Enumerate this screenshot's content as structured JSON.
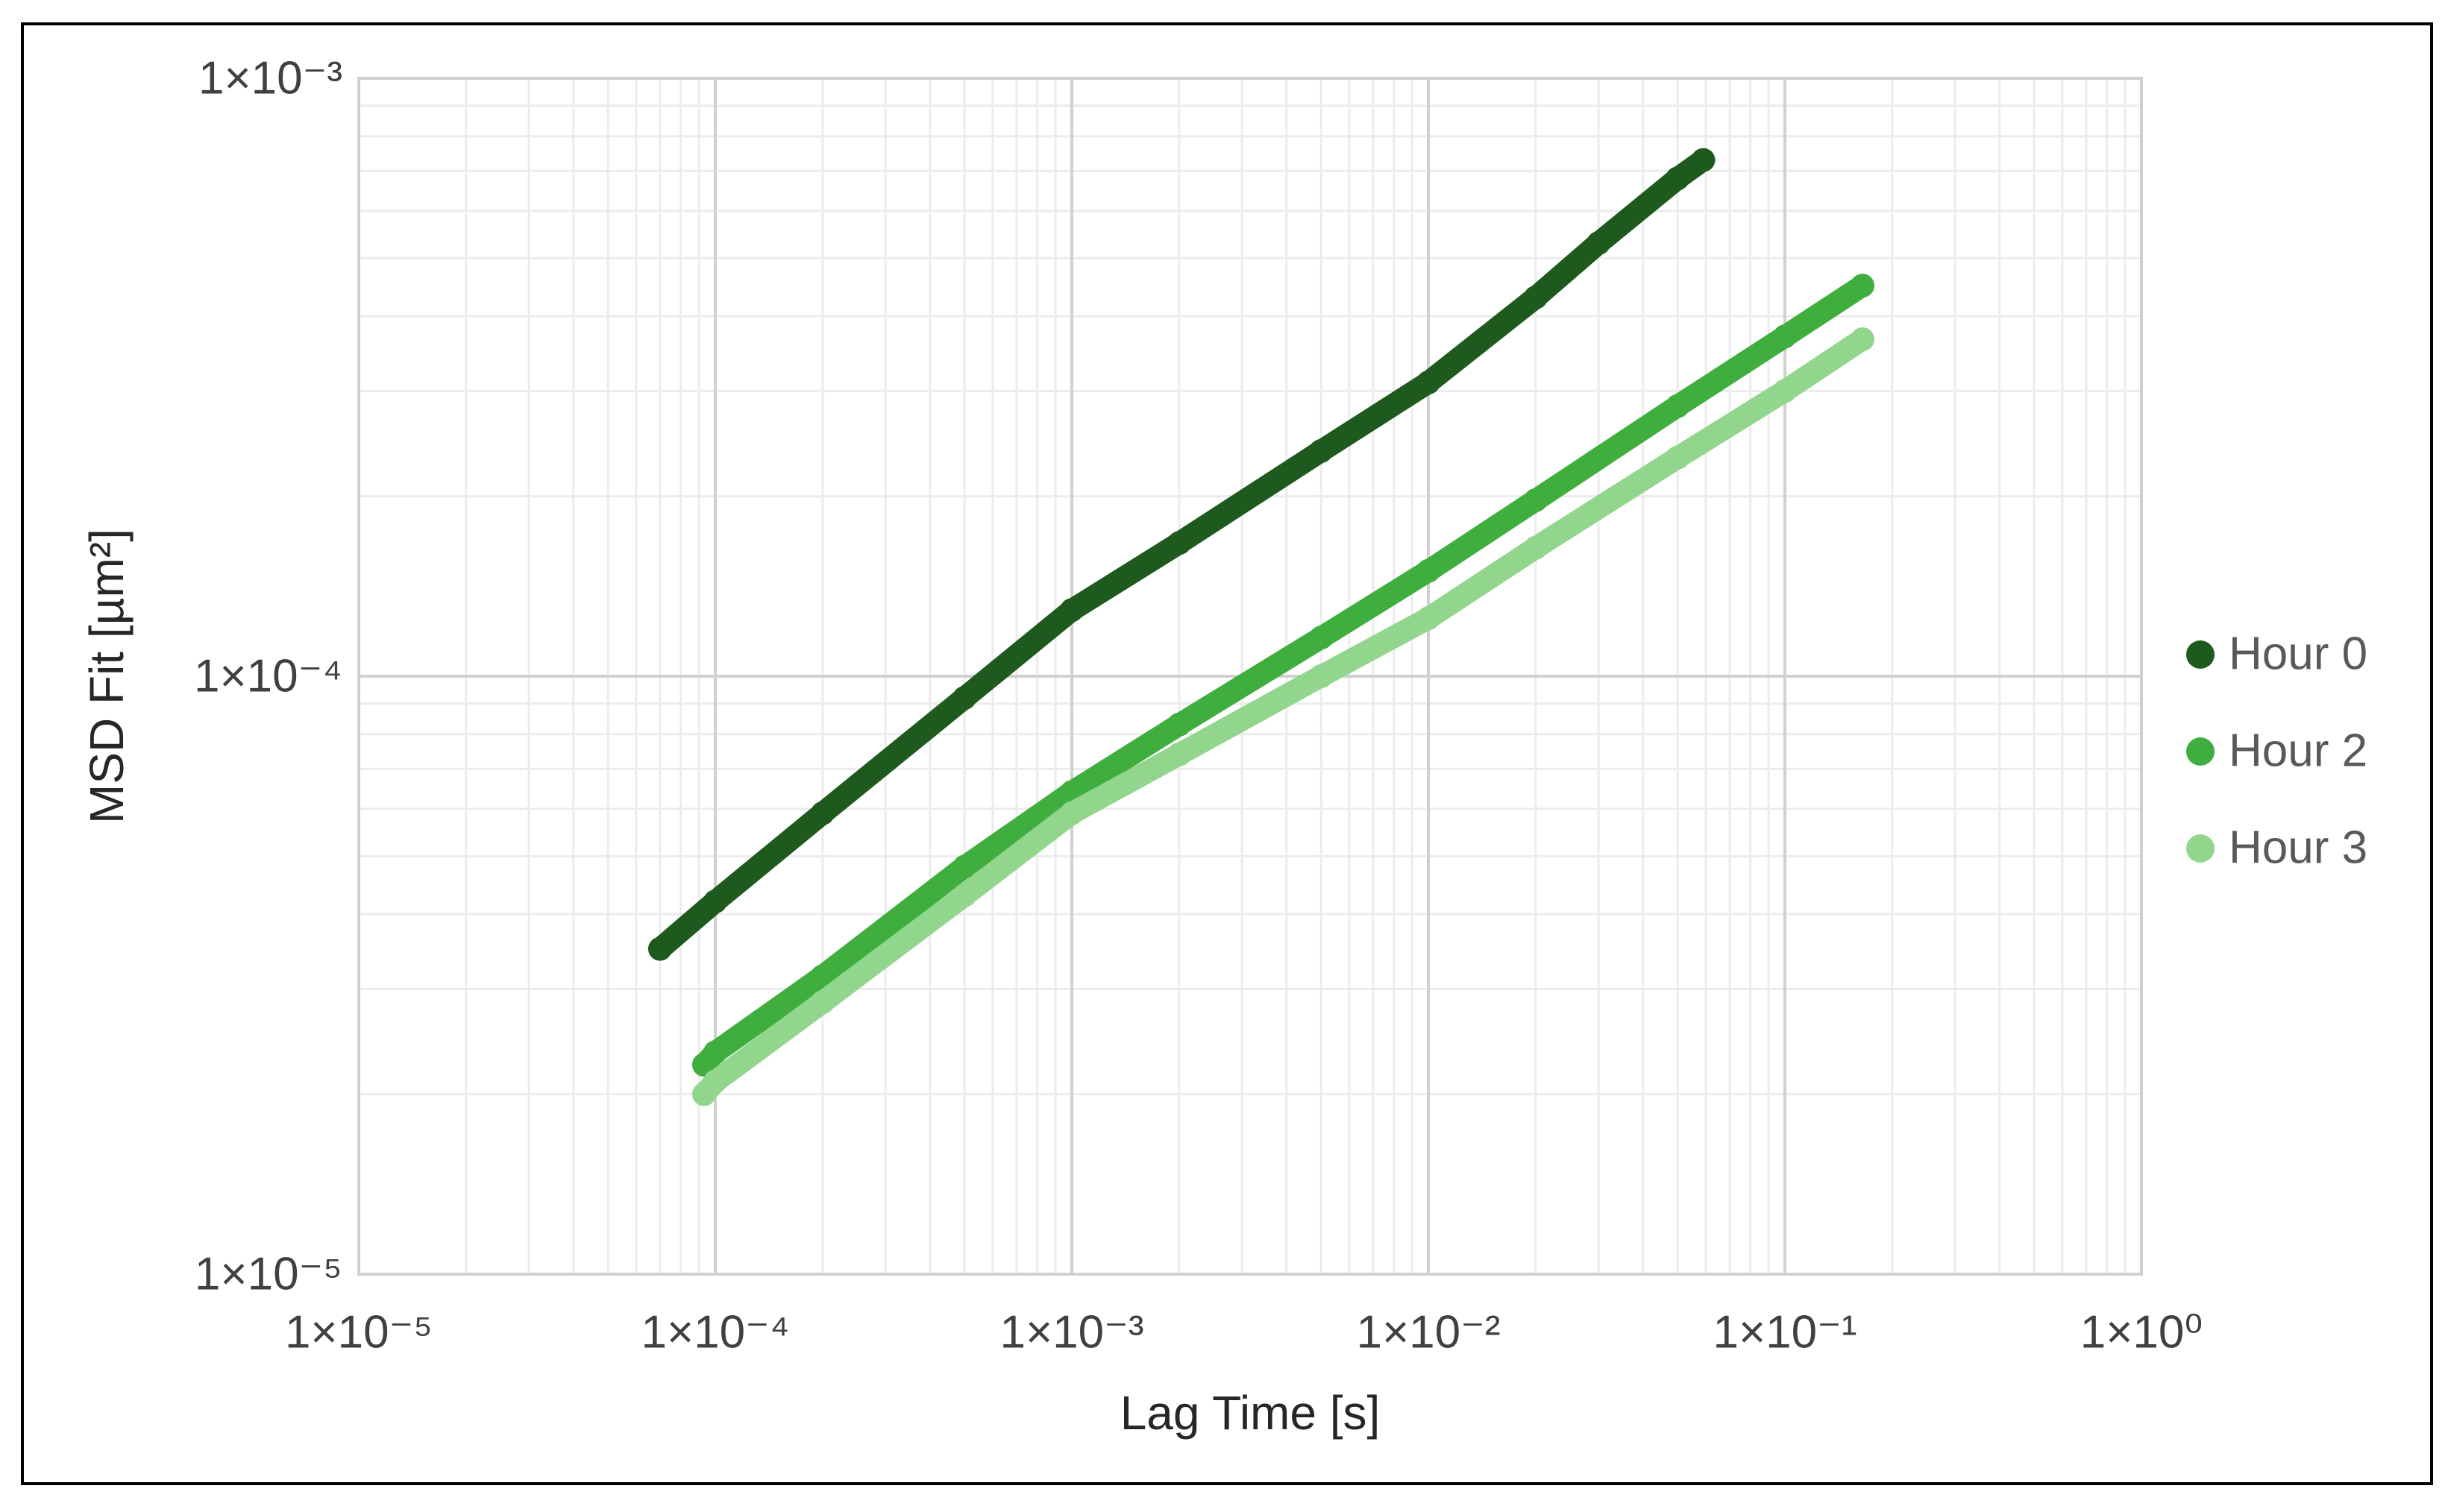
{
  "chart_data": {
    "type": "scatter",
    "x_label": "Lag Time [s]",
    "y_label": "MSD Fit [µm²]",
    "log_x": true,
    "log_y": true,
    "grid": true,
    "minor_grid": true,
    "legend": "right",
    "xlim": [
      1e-05,
      1
    ],
    "ylim": [
      1e-05,
      0.001
    ],
    "xticks": [
      {
        "value": 1e-05,
        "label": "1×10⁻⁵"
      },
      {
        "value": 0.0001,
        "label": "1×10⁻⁴"
      },
      {
        "value": 0.001,
        "label": "1×10⁻³"
      },
      {
        "value": 0.01,
        "label": "1×10⁻²"
      },
      {
        "value": 0.1,
        "label": "1×10⁻¹"
      },
      {
        "value": 1,
        "label": "1×10⁰"
      }
    ],
    "yticks": [
      {
        "value": 1e-05,
        "label": "1×10⁻⁵"
      },
      {
        "value": 0.0001,
        "label": "1×10⁻⁴"
      },
      {
        "value": 0.001,
        "label": "1×10⁻³"
      }
    ],
    "series": [
      {
        "name": "Hour 0",
        "color": "#1e5a1e",
        "x": [
          7e-05,
          0.0001,
          0.0002,
          0.0005,
          0.001,
          0.002,
          0.005,
          0.01,
          0.02,
          0.03,
          0.05,
          0.059
        ],
        "values": [
          3.5e-05,
          4.2e-05,
          5.9e-05,
          9.2e-05,
          0.000129,
          0.000167,
          0.000238,
          0.00031,
          0.00043,
          0.00053,
          0.00068,
          0.00073
        ]
      },
      {
        "name": "Hour 2",
        "color": "#3fae3f",
        "x": [
          9.3e-05,
          0.0001,
          0.0002,
          0.0005,
          0.001,
          0.002,
          0.005,
          0.01,
          0.02,
          0.05,
          0.1,
          0.165
        ],
        "values": [
          2.24e-05,
          2.35e-05,
          3.15e-05,
          4.8e-05,
          6.4e-05,
          8.3e-05,
          0.000116,
          0.00015,
          0.000197,
          0.000283,
          0.00037,
          0.00045
        ]
      },
      {
        "name": "Hour 3",
        "color": "#92d68e",
        "x": [
          9.3e-05,
          0.0001,
          0.0002,
          0.0005,
          0.001,
          0.002,
          0.005,
          0.01,
          0.02,
          0.05,
          0.1,
          0.165
        ],
        "values": [
          2e-05,
          2.1e-05,
          2.85e-05,
          4.3e-05,
          5.9e-05,
          7.4e-05,
          0.0001,
          0.000125,
          0.000164,
          0.000232,
          0.0003,
          0.000366
        ]
      }
    ]
  }
}
